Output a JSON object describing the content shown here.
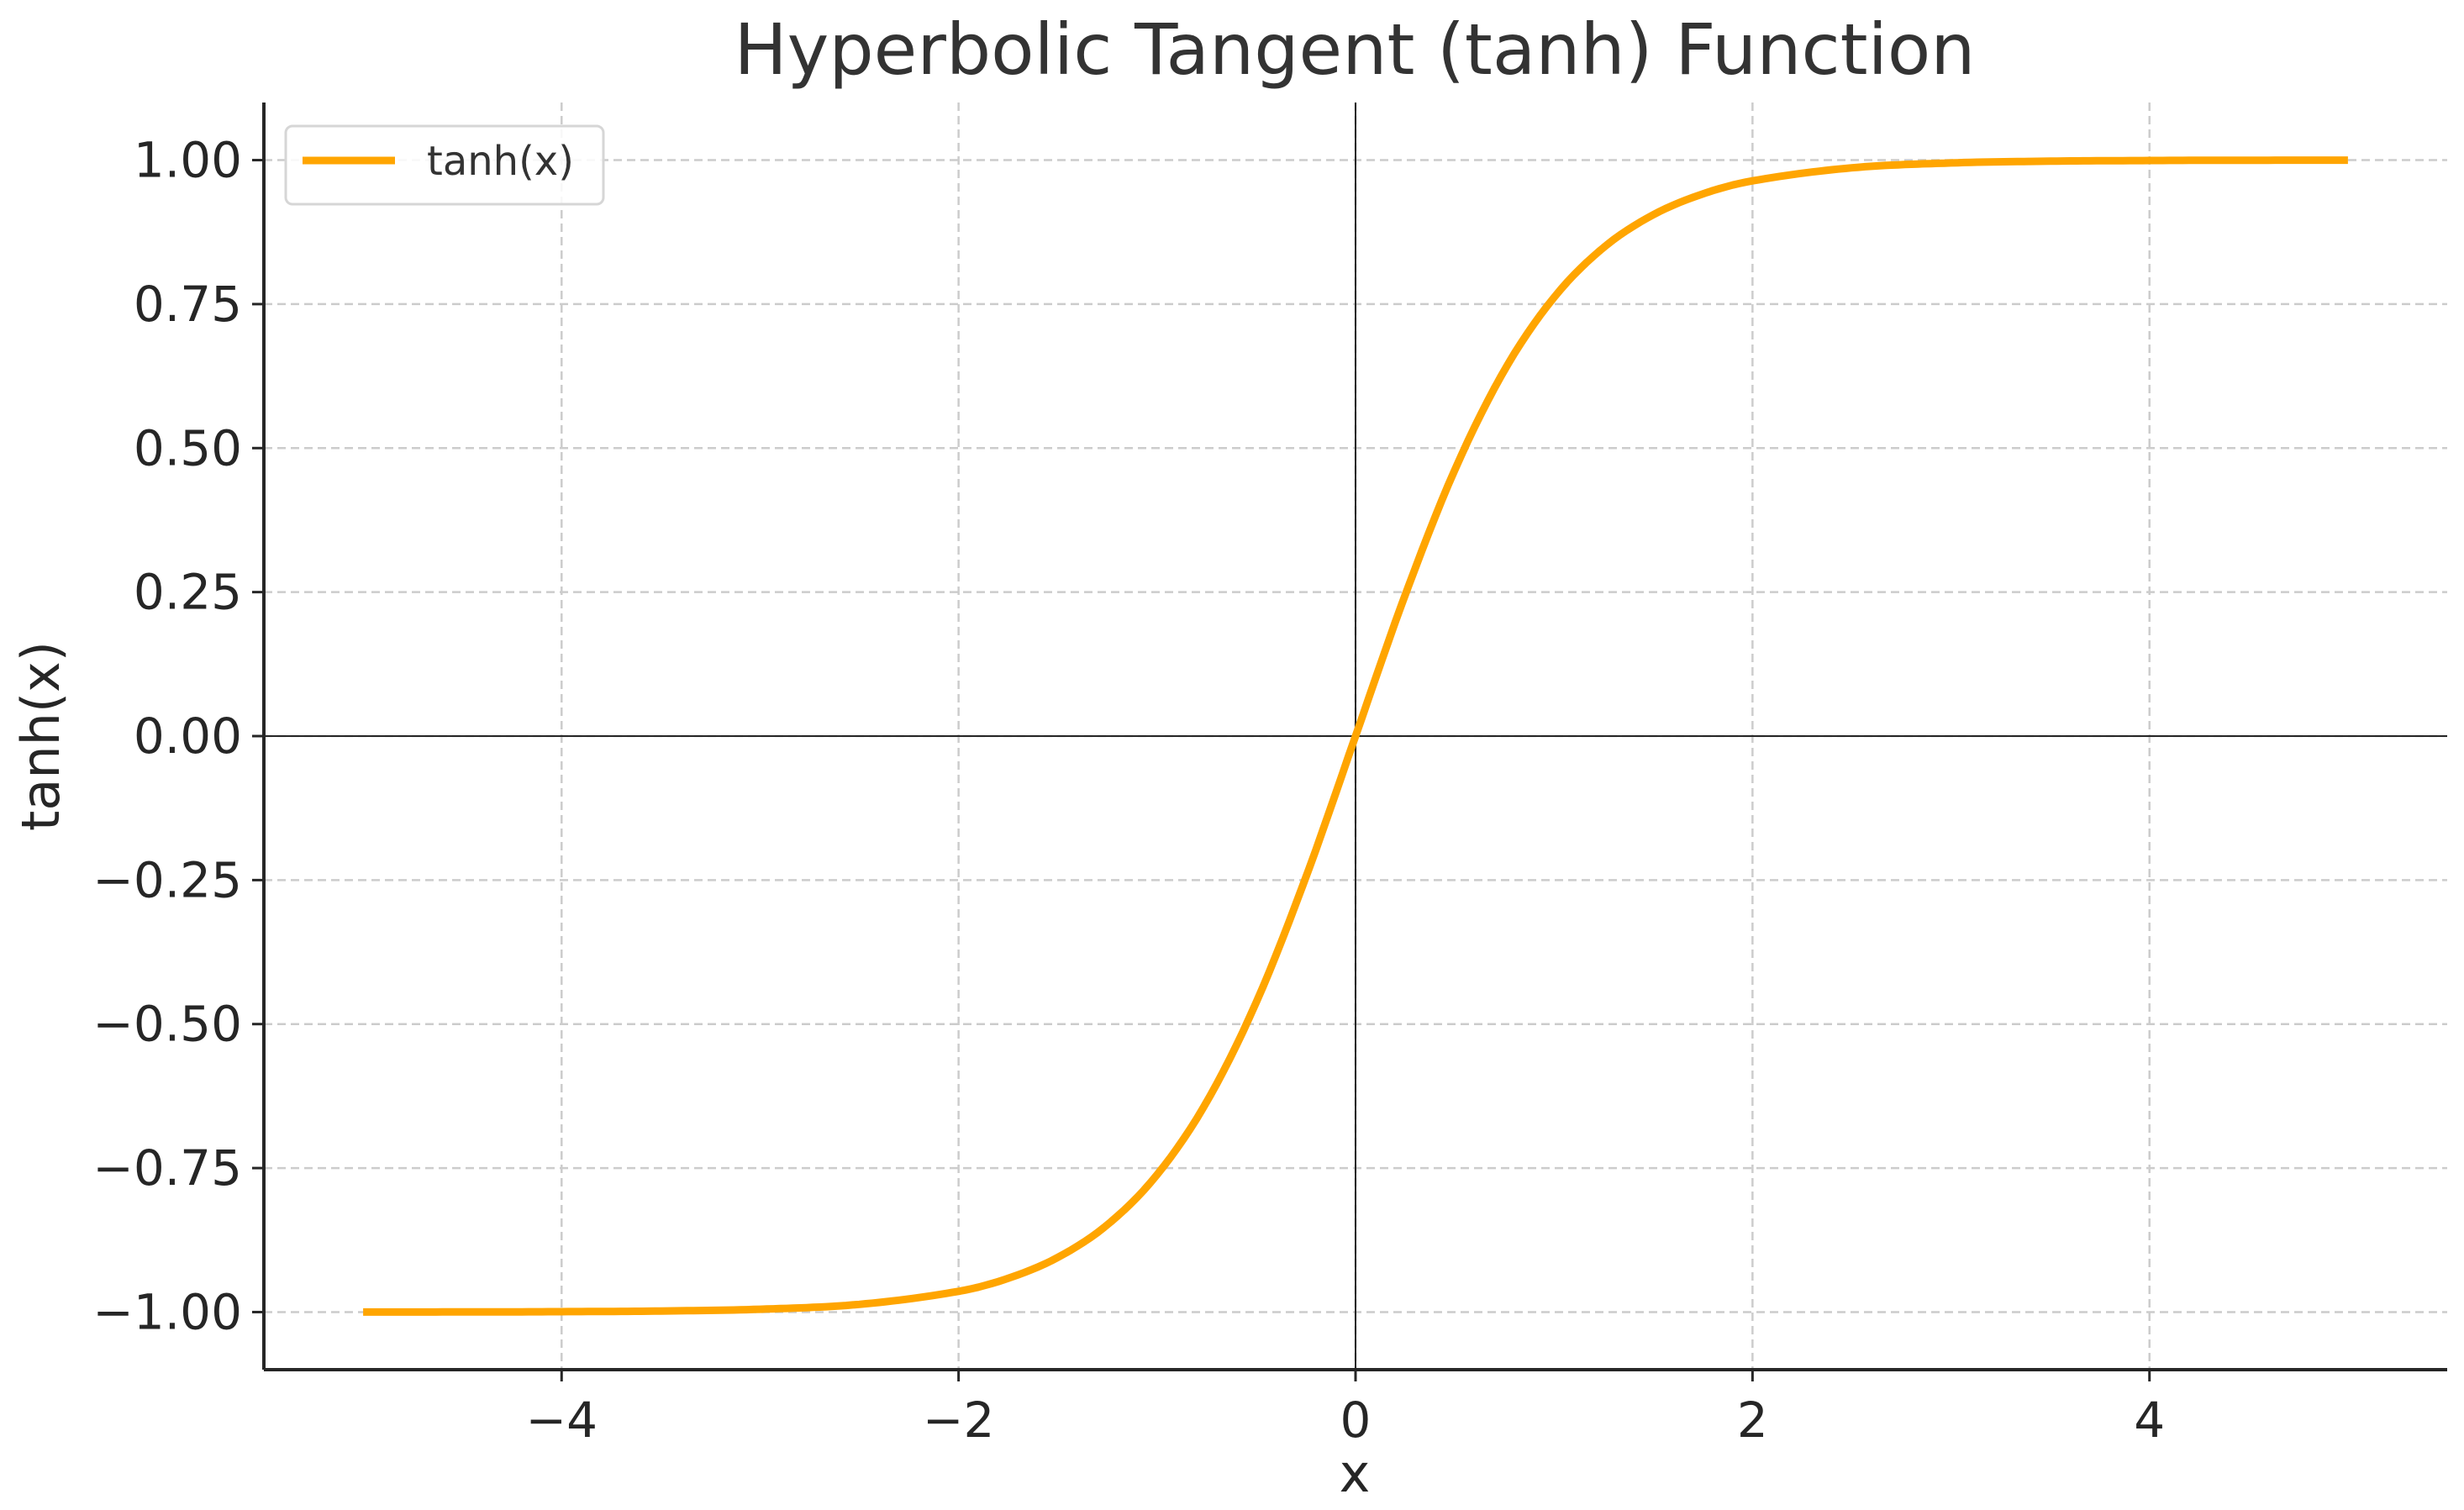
{
  "chart_data": {
    "type": "line",
    "title": "Hyperbolic Tangent (tanh) Function",
    "xlabel": "x",
    "ylabel": "tanh(x)",
    "xlim": [
      -5.5,
      5.5
    ],
    "ylim": [
      -1.1,
      1.1
    ],
    "x_ticks": [
      -4,
      -2,
      0,
      2,
      4
    ],
    "x_tick_labels": [
      "−4",
      "−2",
      "0",
      "2",
      "4"
    ],
    "y_ticks": [
      1.0,
      0.75,
      0.5,
      0.25,
      0.0,
      -0.25,
      -0.5,
      -0.75,
      -1.0
    ],
    "y_tick_labels": [
      "1.00",
      "0.75",
      "0.50",
      "0.25",
      "0.00",
      "−0.25",
      "−0.50",
      "−0.75",
      "−1.00"
    ],
    "grid": true,
    "legend_position": "top-left",
    "reference_lines": {
      "x": 0,
      "y": 0
    },
    "series": [
      {
        "name": "tanh(x)",
        "color": "#FFA500",
        "x": [
          -5.0,
          -4.5,
          -4.0,
          -3.5,
          -3.0,
          -2.5,
          -2.0,
          -1.75,
          -1.5,
          -1.25,
          -1.0,
          -0.75,
          -0.5,
          -0.25,
          0.0,
          0.25,
          0.5,
          0.75,
          1.0,
          1.25,
          1.5,
          1.75,
          2.0,
          2.5,
          3.0,
          3.5,
          4.0,
          4.5,
          5.0
        ],
        "y": [
          -0.9999,
          -0.9998,
          -0.9993,
          -0.9982,
          -0.9951,
          -0.9866,
          -0.964,
          -0.9414,
          -0.9051,
          -0.8483,
          -0.7616,
          -0.6351,
          -0.4621,
          -0.2449,
          0.0,
          0.2449,
          0.4621,
          0.6351,
          0.7616,
          0.8483,
          0.9051,
          0.9414,
          0.964,
          0.9866,
          0.9951,
          0.9982,
          0.9993,
          0.9998,
          0.9999
        ]
      }
    ]
  },
  "colors": {
    "grid": "#cccccc",
    "axis": "#262626",
    "reference": "#262626",
    "legend_border": "#d6d6d6"
  }
}
